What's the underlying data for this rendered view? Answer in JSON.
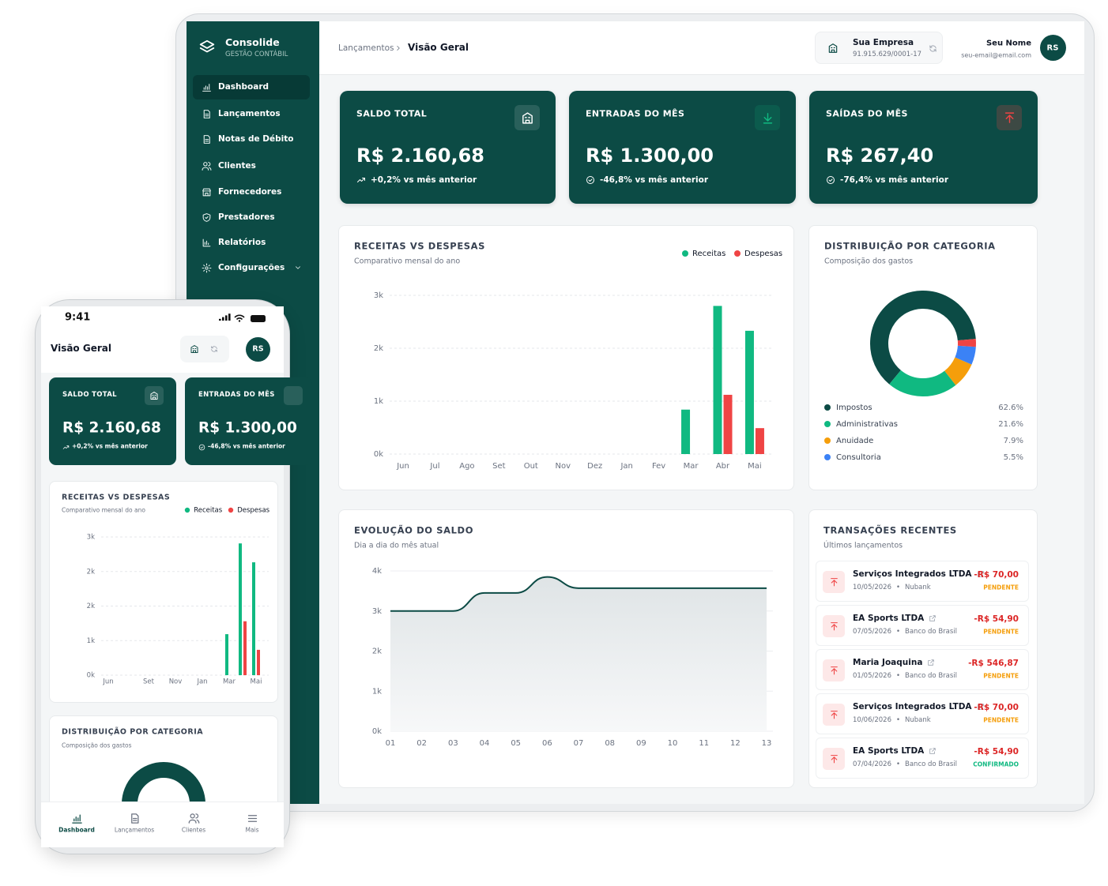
{
  "desktop": {
    "brand": {
      "name": "Consolide",
      "tagline": "GESTÃO CONTÁBIL"
    },
    "menu": [
      "Dashboard",
      "Lançamentos",
      "Notas de Débito",
      "Clientes",
      "Fornecedores",
      "Prestadores",
      "Relatórios",
      "Configurações"
    ],
    "breadcrumb": {
      "parent": "Lançamentos",
      "current": "Visão Geral"
    },
    "company": {
      "name": "Sua Empresa",
      "cnpj": "91.915.629/0001-17"
    },
    "user": {
      "name": "Seu Nome",
      "email": "seu-email@email.com",
      "initials": "RS"
    },
    "kpis": [
      {
        "label": "SALDO TOTAL",
        "value": "R$ 2.160,68",
        "change": "+0,2% vs mês anterior"
      },
      {
        "label": "ENTRADAS DO MÊS",
        "value": "R$ 1.300,00",
        "change": "-46,8% vs mês anterior"
      },
      {
        "label": "SAÍDAS DO MÊS",
        "value": "R$ 267,40",
        "change": "-76,4% vs mês anterior"
      }
    ],
    "transactions": {
      "title": "TRANSAÇÕES RECENTES",
      "subtitle": "Últimos lançamentos",
      "rows": [
        {
          "name": "Serviços Integrados LTDA",
          "date": "10/05/2026",
          "bank": "Nubank",
          "amount": "-R$ 70,00",
          "status": "PENDENTE",
          "status_color": "#f59e0b"
        },
        {
          "name": "EA Sports LTDA",
          "date": "07/05/2026",
          "bank": "Banco do Brasil",
          "amount": "-R$ 54,90",
          "status": "PENDENTE",
          "status_color": "#f59e0b"
        },
        {
          "name": "Maria Joaquina",
          "date": "01/05/2026",
          "bank": "Banco do Brasil",
          "amount": "-R$ 546,87",
          "status": "PENDENTE",
          "status_color": "#f59e0b"
        },
        {
          "name": "Serviços Integrados LTDA",
          "date": "10/06/2026",
          "bank": "Nubank",
          "amount": "-R$ 70,00",
          "status": "PENDENTE",
          "status_color": "#f59e0b"
        },
        {
          "name": "EA Sports LTDA",
          "date": "07/04/2026",
          "bank": "Banco do Brasil",
          "amount": "-R$ 54,90",
          "status": "CONFIRMADO",
          "status_color": "#10b981"
        }
      ]
    }
  },
  "chart_data": [
    {
      "type": "bar",
      "title": "RECEITAS VS DESPESAS",
      "subtitle": "Comparativo mensal do ano",
      "categories": [
        "Jun",
        "Jul",
        "Ago",
        "Set",
        "Out",
        "Nov",
        "Dez",
        "Jan",
        "Fev",
        "Mar",
        "Abr",
        "Mai"
      ],
      "series": [
        {
          "name": "Receitas",
          "color": "#10b981",
          "values": [
            0,
            0,
            0,
            0,
            0,
            0,
            0,
            0,
            0,
            840,
            2800,
            2330
          ]
        },
        {
          "name": "Despesas",
          "color": "#ef4444",
          "values": [
            0,
            0,
            0,
            0,
            0,
            0,
            0,
            0,
            0,
            0,
            1120,
            490
          ]
        }
      ],
      "ylim": [
        0,
        3000
      ],
      "yticks": [
        {
          "value": 0,
          "label": "0k"
        },
        {
          "value": 1000,
          "label": "1k"
        },
        {
          "value": 2000,
          "label": "2k"
        },
        {
          "value": 3000,
          "label": "3k"
        }
      ],
      "grid": true,
      "legend": "top-right"
    },
    {
      "type": "donut",
      "title": "DISTRIBUIÇÃO POR CATEGORIA",
      "subtitle": "Composição dos gastos",
      "categories": [
        "Impostos",
        "Administrativas",
        "Anuidade",
        "Consultoria",
        null
      ],
      "values": [
        62.6,
        21.6,
        7.9,
        5.5,
        2.4
      ],
      "value_labels": [
        "62.6%",
        "21.6%",
        "7.9%",
        "5.5%",
        null
      ],
      "colors": [
        "#0c4b45",
        "#10b981",
        "#f59e0b",
        "#3b82f6",
        "#ef4444"
      ],
      "legend": "bottom"
    },
    {
      "type": "line",
      "title": "EVOLUÇÃO DO SALDO",
      "subtitle": "Dia a dia do mês atual",
      "categories": [
        "01",
        "02",
        "03",
        "04",
        "05",
        "06",
        "07",
        "08",
        "09",
        "10",
        "11",
        "12",
        "13"
      ],
      "values": [
        3000,
        3000,
        3000,
        3450,
        3450,
        3850,
        3570,
        3570,
        3570,
        3570,
        3570,
        3570,
        3570
      ],
      "color": "#0c4b45",
      "ylim": [
        0,
        4000
      ],
      "yticks": [
        {
          "value": 0,
          "label": "0k"
        },
        {
          "value": 1000,
          "label": "1k"
        },
        {
          "value": 2000,
          "label": "2k"
        },
        {
          "value": 3000,
          "label": "3k"
        },
        {
          "value": 4000,
          "label": "4k"
        }
      ],
      "grid": true
    },
    {
      "type": "bar",
      "title": "RECEITAS VS DESPESAS",
      "subtitle": "Comparativo mensal do ano",
      "categories": [
        "Jun",
        null,
        null,
        "Set",
        null,
        "Nov",
        null,
        "Jan",
        null,
        "Mar",
        null,
        "Mai"
      ],
      "series": [
        {
          "name": "Receitas",
          "color": "#10b981",
          "values": [
            0,
            0,
            0,
            0,
            0,
            0,
            0,
            0,
            0,
            890,
            2860,
            2450
          ]
        },
        {
          "name": "Despesas",
          "color": "#ef4444",
          "values": [
            0,
            0,
            0,
            0,
            0,
            0,
            0,
            0,
            0,
            0,
            1170,
            550
          ]
        }
      ],
      "ylim": [
        0,
        3000
      ],
      "yticks": [
        {
          "value": 0,
          "label": "0k"
        },
        {
          "value": 750,
          "label": "1k"
        },
        {
          "value": 1500,
          "label": "2k"
        },
        {
          "value": 2250,
          "label": "2k"
        },
        {
          "value": 3000,
          "label": "3k"
        }
      ],
      "grid": true,
      "legend": "top-right"
    }
  ],
  "phone": {
    "time": "9:41",
    "title": "Visão Geral",
    "initials": "RS",
    "kpis": [
      {
        "label": "SALDO TOTAL",
        "value": "R$ 2.160,68",
        "change": "+0,2% vs mês anterior"
      },
      {
        "label": "ENTRADAS DO MÊS",
        "value": "R$ 1.300,00",
        "change": "-46,8% vs mês anterior"
      }
    ],
    "distribution": {
      "title": "DISTRIBUIÇÃO POR CATEGORIA",
      "subtitle": "Composição dos gastos"
    },
    "nav": [
      "Dashboard",
      "Lançamentos",
      "Clientes",
      "Mais"
    ]
  }
}
